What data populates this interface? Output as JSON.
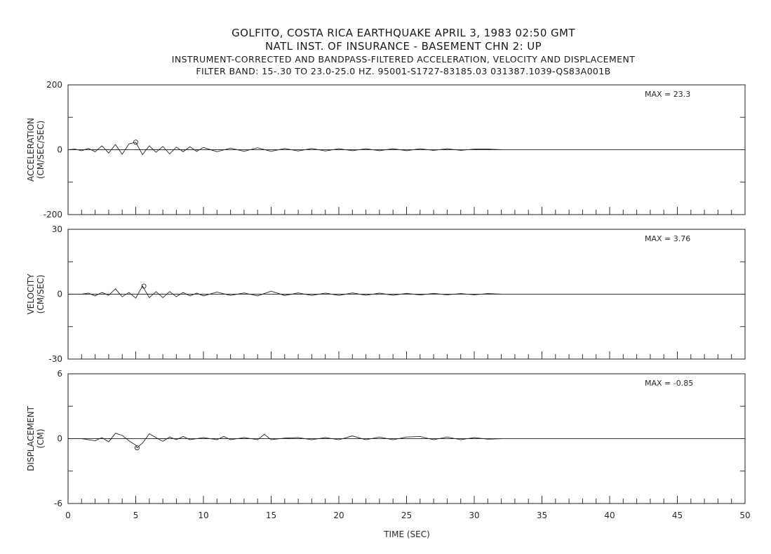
{
  "header": {
    "line1": "GOLFITO, COSTA RICA EARTHQUAKE     APRIL 3, 1983  02:50 GMT",
    "line2": "NATL INST. OF INSURANCE - BASEMENT    CHN 2: UP",
    "line3": "INSTRUMENT-CORRECTED AND BANDPASS-FILTERED ACCELERATION, VELOCITY AND DISPLACEMENT",
    "line4": "FILTER BAND:  15-.30 TO 23.0-25.0 HZ.    95001-S1727-83185.03  031387.1039-QS83A001B"
  },
  "chart_data": [
    {
      "type": "line",
      "ylabel_line1": "ACCELERATION",
      "ylabel_line2": "(CM/SEC/SEC)",
      "ylim": [
        -200,
        200
      ],
      "yticks": [
        "200",
        "0",
        "-200"
      ],
      "max_label": "MAX = 23.3",
      "max_value": 23.3,
      "peak_time": 5.0,
      "record_end": 32.0,
      "series": [
        {
          "x": [
            0,
            0.5,
            1,
            1.5,
            2,
            2.5,
            3,
            3.5,
            4,
            4.5,
            5,
            5.5,
            6,
            6.5,
            7,
            7.5,
            8,
            8.5,
            9,
            9.5,
            10,
            11,
            12,
            13,
            14,
            15,
            16,
            17,
            18,
            19,
            20,
            21,
            22,
            23,
            24,
            25,
            26,
            27,
            28,
            29,
            30,
            31,
            32
          ],
          "y": [
            0,
            2,
            -3,
            4,
            -6,
            12,
            -10,
            16,
            -14,
            18,
            23,
            -15,
            12,
            -8,
            10,
            -13,
            8,
            -6,
            9,
            -5,
            7,
            -6,
            5,
            -5,
            6,
            -5,
            4,
            -4,
            4,
            -4,
            3,
            -3,
            3,
            -3,
            3,
            -3,
            3,
            -2,
            3,
            -2,
            2,
            2,
            0
          ]
        }
      ]
    },
    {
      "type": "line",
      "ylabel_line1": "VELOCITY",
      "ylabel_line2": "(CM/SEC)",
      "ylim": [
        -30,
        30
      ],
      "yticks": [
        "30",
        "0",
        "-30"
      ],
      "max_label": "MAX = 3.76",
      "max_value": 3.76,
      "peak_time": 5.6,
      "record_end": 32.0,
      "series": [
        {
          "x": [
            0,
            1,
            1.5,
            2,
            2.5,
            3,
            3.5,
            4,
            4.5,
            5,
            5.5,
            6,
            6.5,
            7,
            7.5,
            8,
            8.5,
            9,
            9.5,
            10,
            11,
            12,
            13,
            14,
            15,
            16,
            17,
            18,
            19,
            20,
            21,
            22,
            23,
            24,
            25,
            26,
            27,
            28,
            29,
            30,
            31,
            32
          ],
          "y": [
            0,
            0,
            0.5,
            -0.8,
            0.8,
            -0.5,
            2.5,
            -1.2,
            0.8,
            -1.8,
            3.76,
            -1.6,
            1.2,
            -1.6,
            1.2,
            -1.2,
            0.8,
            -0.8,
            0.5,
            -0.8,
            1.0,
            -0.6,
            0.6,
            -0.8,
            1.4,
            -0.6,
            0.6,
            -0.6,
            0.5,
            -0.6,
            0.6,
            -0.5,
            0.5,
            -0.5,
            0.4,
            -0.4,
            0.4,
            -0.3,
            0.3,
            -0.3,
            0.3,
            0
          ]
        }
      ]
    },
    {
      "type": "line",
      "ylabel_line1": "DISPLACEMENT",
      "ylabel_line2": "(CM)",
      "ylim": [
        -6,
        6
      ],
      "yticks": [
        "6",
        "0",
        "-6"
      ],
      "max_label": "MAX = -0.85",
      "max_value": -0.85,
      "peak_time": 5.1,
      "record_end": 32.0,
      "series": [
        {
          "x": [
            0,
            1,
            1.5,
            2,
            2.5,
            3,
            3.5,
            4,
            4.5,
            5,
            5.1,
            5.5,
            6,
            6.5,
            7,
            7.5,
            8,
            8.5,
            9,
            10,
            11,
            11.5,
            12,
            13,
            14,
            14.5,
            15,
            16,
            17,
            18,
            19,
            20,
            21,
            22,
            23,
            24,
            25,
            26,
            27,
            28,
            29,
            30,
            31,
            32
          ],
          "y": [
            0,
            0,
            -0.1,
            -0.2,
            0.1,
            -0.3,
            0.5,
            0.3,
            -0.2,
            -0.6,
            -0.85,
            -0.4,
            0.45,
            0.1,
            -0.25,
            0.15,
            -0.1,
            0.2,
            -0.1,
            0.1,
            -0.1,
            0.2,
            -0.1,
            0.1,
            -0.1,
            0.4,
            -0.1,
            0.05,
            0.1,
            -0.1,
            0.1,
            -0.1,
            0.25,
            -0.1,
            0.15,
            -0.1,
            0.15,
            0.2,
            -0.1,
            0.15,
            -0.1,
            0.1,
            -0.05,
            0
          ]
        }
      ]
    }
  ],
  "xaxis": {
    "label": "TIME (SEC)",
    "xlim": [
      0,
      50
    ],
    "ticks": [
      0,
      5,
      10,
      15,
      20,
      25,
      30,
      35,
      40,
      45,
      50
    ],
    "minor_step": 1
  }
}
